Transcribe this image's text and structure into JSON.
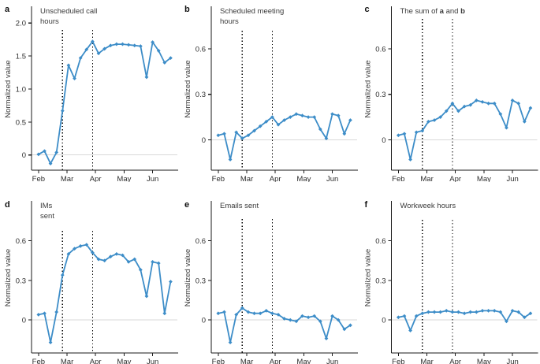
{
  "figure": {
    "line_color": "#3d8dc8",
    "zero_line_color": "#d9d9d9",
    "axis_color": "#1a1a1a",
    "event_line_color": "#000000",
    "y_axis_label": "Normalized value",
    "x_ticks": [
      "Feb",
      "Mar",
      "Apr",
      "May",
      "Jun"
    ],
    "event_line_point_indices": [
      4,
      9
    ]
  },
  "chart_data": [
    {
      "panel": "a",
      "type": "line",
      "row": 0,
      "title": "Unscheduled call hours",
      "title_lines": [
        [
          {
            "t": "Unscheduled call",
            "b": false
          }
        ],
        [
          {
            "t": "hours",
            "b": false
          }
        ]
      ],
      "ylabel": "Normalized value",
      "x_tick_labels": [
        "Feb",
        "Mar",
        "Apr",
        "May",
        "Jun"
      ],
      "y_ticks": [
        0,
        0.5,
        1.0,
        1.5,
        2.0
      ],
      "y_tick_labels": [
        "0",
        "0.5",
        "1.0",
        "1.5",
        "2.0"
      ],
      "ylim": [
        -0.23,
        2.23
      ],
      "vline_top": 38,
      "values": [
        0.01,
        0.06,
        -0.13,
        0.04,
        0.67,
        1.36,
        1.16,
        1.47,
        1.6,
        1.72,
        1.54,
        1.61,
        1.66,
        1.68,
        1.68,
        1.67,
        1.66,
        1.65,
        1.18,
        1.71,
        1.58,
        1.4,
        1.47
      ]
    },
    {
      "panel": "b",
      "type": "line",
      "row": 0,
      "title": "Scheduled meeting hours",
      "title_lines": [
        [
          {
            "t": "Scheduled meeting",
            "b": false
          }
        ],
        [
          {
            "t": "hours",
            "b": false
          }
        ]
      ],
      "ylabel": "Normalized value",
      "x_tick_labels": [
        "Feb",
        "Mar",
        "Apr",
        "May",
        "Jun"
      ],
      "y_ticks": [
        0,
        0.3,
        0.6
      ],
      "y_tick_labels": [
        "0",
        "0.3",
        "0.6"
      ],
      "ylim": [
        -0.2,
        0.87
      ],
      "vline_top": 39,
      "values": [
        0.03,
        0.04,
        -0.13,
        0.05,
        0.01,
        0.03,
        0.06,
        0.09,
        0.12,
        0.15,
        0.1,
        0.13,
        0.15,
        0.17,
        0.16,
        0.15,
        0.15,
        0.07,
        0.01,
        0.17,
        0.16,
        0.04,
        0.13
      ]
    },
    {
      "panel": "c",
      "type": "line",
      "row": 0,
      "title": "The sum of a and b",
      "title_lines": [
        [
          {
            "t": "The sum of ",
            "b": false
          },
          {
            "t": "a",
            "b": true
          },
          {
            "t": " and ",
            "b": false
          },
          {
            "t": "b",
            "b": true
          }
        ]
      ],
      "ylabel": "Normalized value",
      "x_tick_labels": [
        "Feb",
        "Mar",
        "Apr",
        "May",
        "Jun"
      ],
      "y_ticks": [
        0,
        0.3,
        0.6
      ],
      "y_tick_labels": [
        "0",
        "0.3",
        "0.6"
      ],
      "ylim": [
        -0.2,
        0.87
      ],
      "vline_top": 24,
      "values": [
        0.03,
        0.04,
        -0.13,
        0.05,
        0.06,
        0.12,
        0.13,
        0.15,
        0.19,
        0.24,
        0.19,
        0.22,
        0.23,
        0.26,
        0.25,
        0.24,
        0.24,
        0.17,
        0.08,
        0.26,
        0.24,
        0.12,
        0.21
      ]
    },
    {
      "panel": "d",
      "type": "line",
      "row": 1,
      "title": "IMs sent",
      "title_lines": [
        [
          {
            "t": "IMs",
            "b": false
          }
        ],
        [
          {
            "t": "sent",
            "b": false
          }
        ]
      ],
      "ylabel": "Normalized value",
      "x_tick_labels": [
        "Feb",
        "Mar",
        "Apr",
        "May",
        "Jun"
      ],
      "y_ticks": [
        0,
        0.3,
        0.6
      ],
      "y_tick_labels": [
        "0",
        "0.3",
        "0.6"
      ],
      "ylim": [
        -0.25,
        0.89
      ],
      "vline_top": 62,
      "values": [
        0.04,
        0.05,
        -0.17,
        0.06,
        0.34,
        0.5,
        0.54,
        0.56,
        0.57,
        0.51,
        0.46,
        0.45,
        0.48,
        0.5,
        0.49,
        0.44,
        0.46,
        0.38,
        0.18,
        0.44,
        0.43,
        0.05,
        0.29
      ]
    },
    {
      "panel": "e",
      "type": "line",
      "row": 1,
      "title": "Emails sent",
      "title_lines": [
        [
          {
            "t": "Emails sent",
            "b": false
          }
        ]
      ],
      "ylabel": "Normalized value",
      "x_tick_labels": [
        "Feb",
        "Mar",
        "Apr",
        "May",
        "Jun"
      ],
      "y_ticks": [
        0,
        0.3,
        0.6
      ],
      "y_tick_labels": [
        "0",
        "0.3",
        "0.6"
      ],
      "ylim": [
        -0.25,
        0.89
      ],
      "vline_top": 47,
      "values": [
        0.05,
        0.06,
        -0.17,
        0.04,
        0.09,
        0.06,
        0.05,
        0.05,
        0.07,
        0.05,
        0.04,
        0.01,
        0.0,
        -0.01,
        0.03,
        0.02,
        0.03,
        -0.01,
        -0.14,
        0.03,
        0.0,
        -0.07,
        -0.04
      ]
    },
    {
      "panel": "f",
      "type": "line",
      "row": 1,
      "title": "Workweek hours",
      "title_lines": [
        [
          {
            "t": "Workweek hours",
            "b": false
          }
        ]
      ],
      "ylabel": "Normalized value",
      "x_tick_labels": [
        "Feb",
        "Mar",
        "Apr",
        "May",
        "Jun"
      ],
      "y_ticks": [
        0,
        0.3,
        0.6
      ],
      "y_tick_labels": [
        "0",
        "0.3",
        "0.6"
      ],
      "ylim": [
        -0.25,
        0.89
      ],
      "vline_top": 48,
      "values": [
        0.02,
        0.03,
        -0.08,
        0.03,
        0.05,
        0.06,
        0.06,
        0.06,
        0.07,
        0.06,
        0.06,
        0.05,
        0.06,
        0.06,
        0.07,
        0.07,
        0.07,
        0.06,
        -0.01,
        0.07,
        0.06,
        0.02,
        0.05
      ]
    }
  ]
}
